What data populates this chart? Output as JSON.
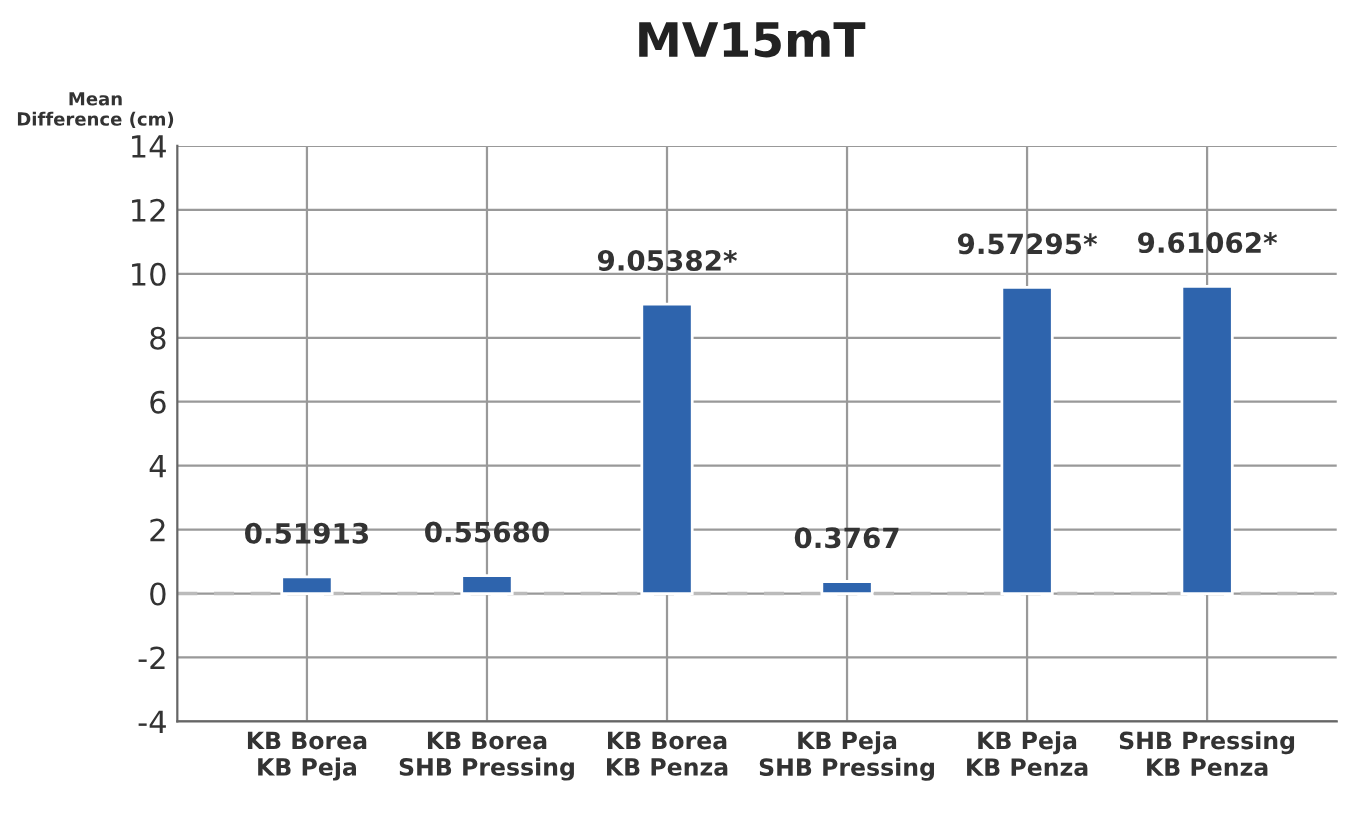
{
  "chart_data": {
    "type": "bar",
    "title": "MV15mT",
    "ylabel": "Mean\nDifference (cm)",
    "categories": [
      "KB Borea\nKB Peja",
      "KB Borea\nSHB Pressing",
      "KB Borea\nKB Penza",
      "KB Peja\nSHB Pressing",
      "KB Peja\nKB Penza",
      "SHB Pressing\nKB Penza"
    ],
    "values": [
      0.51913,
      0.5568,
      9.05382,
      0.3767,
      9.57295,
      9.61062
    ],
    "value_labels": [
      "0.51913",
      "0.55680",
      "9.05382*",
      "0.3767",
      "9.57295*",
      "9.61062*"
    ],
    "color": "#2e64ad",
    "ylim": [
      -4,
      14
    ],
    "yticks": [
      -4,
      -2,
      0,
      2,
      4,
      6,
      8,
      10,
      12,
      14
    ],
    "grid": true,
    "ref_lines": [
      {
        "axis": "y",
        "value": 0,
        "color": "#bbbbbb",
        "line_style": "dashed"
      }
    ]
  }
}
